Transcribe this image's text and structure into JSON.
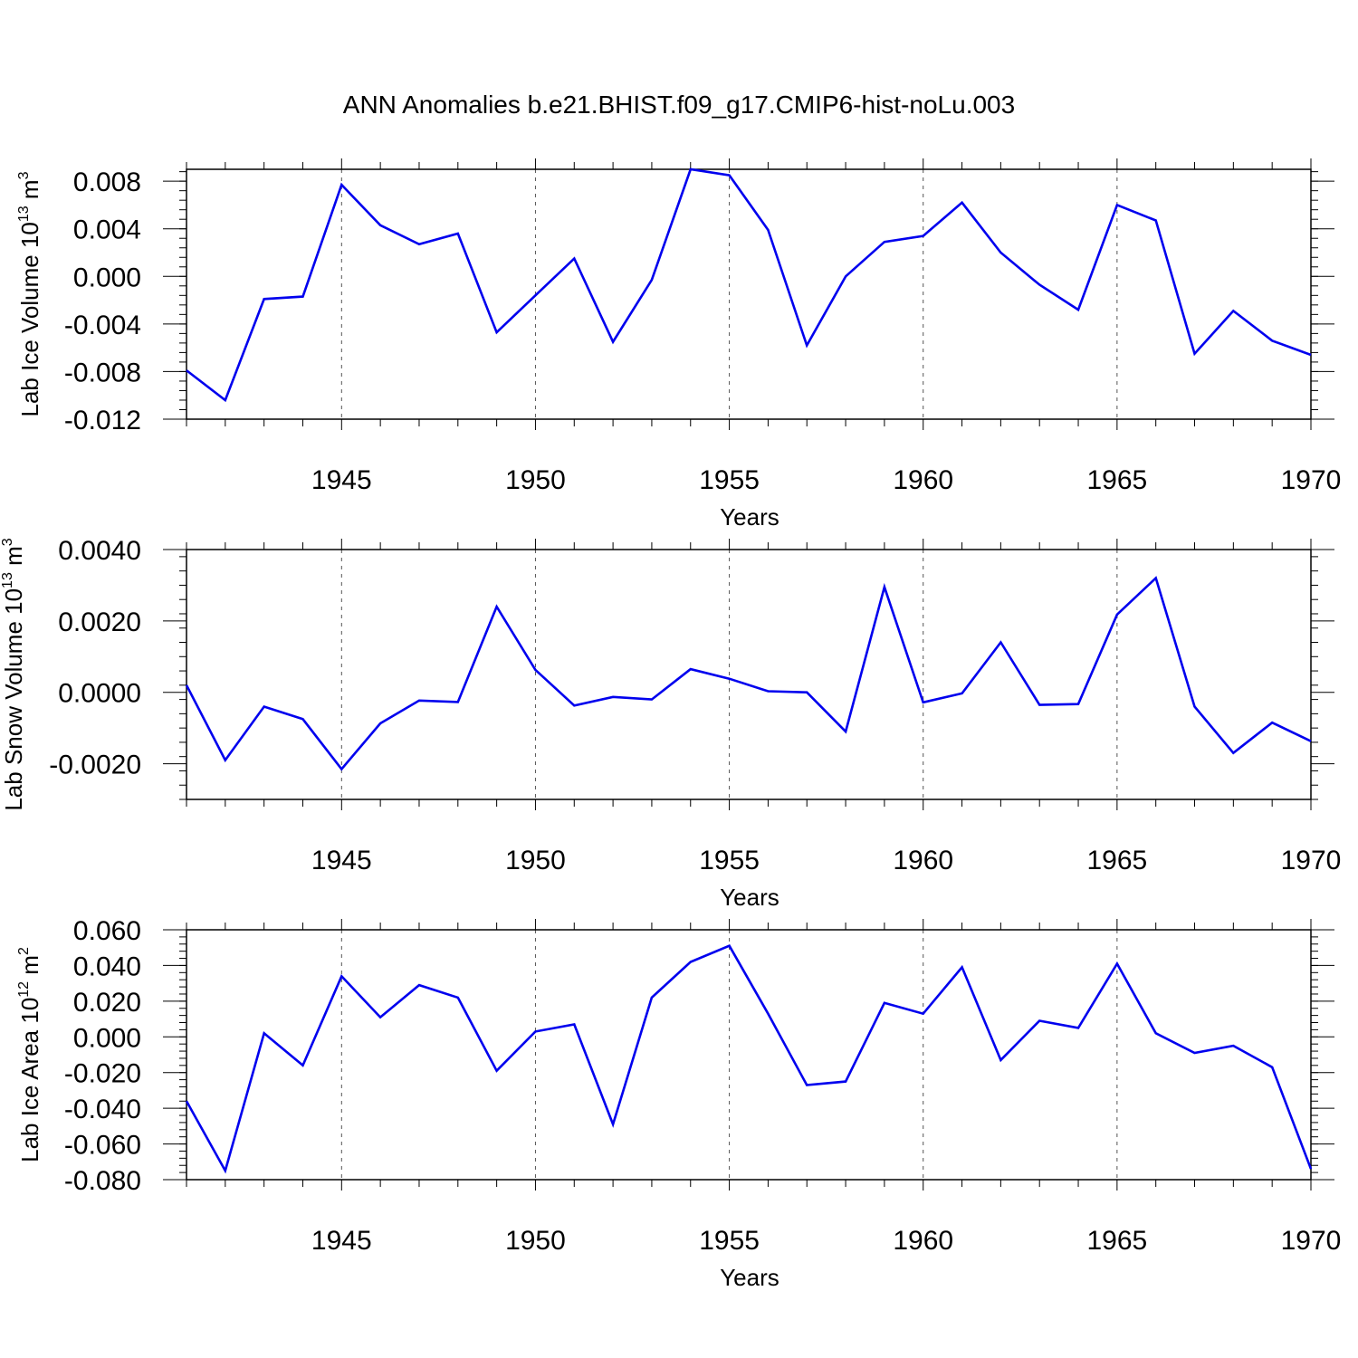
{
  "figure": {
    "title": "ANN Anomalies b.e21.BHIST.f09_g17.CMIP6-hist-noLu.003"
  },
  "chart_data": [
    {
      "type": "line",
      "ylabel": "Lab Ice Volume 10",
      "ylabel_exp": "13",
      "ylabel_unit": " m",
      "ylabel_unit_exp": "3",
      "xlabel": "Years",
      "xlim": [
        1941,
        1970
      ],
      "ylim": [
        -0.012,
        0.009
      ],
      "yticks": [
        -0.012,
        -0.008,
        -0.004,
        0.0,
        0.004,
        0.008
      ],
      "ytick_labels": [
        "-0.012",
        "-0.008",
        "-0.004",
        "0.000",
        "0.004",
        "0.008"
      ],
      "yminor_step": 0.0008,
      "xticks": [
        1945,
        1950,
        1955,
        1960,
        1965,
        1970
      ],
      "xtick_labels": [
        "1945",
        "1950",
        "1955",
        "1960",
        "1965",
        "1970"
      ],
      "x": [
        1941,
        1942,
        1943,
        1944,
        1945,
        1946,
        1947,
        1948,
        1949,
        1950,
        1951,
        1952,
        1953,
        1954,
        1955,
        1956,
        1957,
        1958,
        1959,
        1960,
        1961,
        1962,
        1963,
        1964,
        1965,
        1966,
        1967,
        1968,
        1969,
        1970
      ],
      "series": [
        {
          "name": "Lab Ice Volume",
          "color": "#0000ee",
          "values": [
            -0.0079,
            -0.0104,
            -0.0019,
            -0.0017,
            0.0077,
            0.0043,
            0.0027,
            0.0036,
            -0.0047,
            -0.0016,
            0.0015,
            -0.0055,
            -0.0003,
            0.009,
            0.0085,
            0.0039,
            -0.0058,
            0.0,
            0.0029,
            0.0034,
            0.0062,
            0.002,
            -0.0007,
            -0.0028,
            0.006,
            0.0047,
            -0.0065,
            -0.0029,
            -0.0054,
            -0.0066
          ]
        }
      ]
    },
    {
      "type": "line",
      "ylabel": "Lab Snow Volume 10",
      "ylabel_exp": "13",
      "ylabel_unit": " m",
      "ylabel_unit_exp": "3",
      "xlabel": "Years",
      "xlim": [
        1941,
        1970
      ],
      "ylim": [
        -0.003,
        0.004
      ],
      "yticks": [
        -0.002,
        0.0,
        0.002,
        0.004
      ],
      "ytick_labels": [
        "-0.0020",
        "0.0000",
        "0.0020",
        "0.0040"
      ],
      "yminor_step": 0.0004,
      "xticks": [
        1945,
        1950,
        1955,
        1960,
        1965,
        1970
      ],
      "xtick_labels": [
        "1945",
        "1950",
        "1955",
        "1960",
        "1965",
        "1970"
      ],
      "x": [
        1941,
        1942,
        1943,
        1944,
        1945,
        1946,
        1947,
        1948,
        1949,
        1950,
        1951,
        1952,
        1953,
        1954,
        1955,
        1956,
        1957,
        1958,
        1959,
        1960,
        1961,
        1962,
        1963,
        1964,
        1965,
        1966,
        1967,
        1968,
        1969,
        1970
      ],
      "series": [
        {
          "name": "Lab Snow Volume",
          "color": "#0000ee",
          "values": [
            0.0002,
            -0.0019,
            -0.0004,
            -0.00075,
            -0.00215,
            -0.00087,
            -0.00023,
            -0.00027,
            0.0024,
            0.00063,
            -0.00037,
            -0.00013,
            -0.0002,
            0.00065,
            0.00038,
            3e-05,
            0.0,
            -0.0011,
            0.00295,
            -0.00028,
            -3e-05,
            0.0014,
            -0.00035,
            -0.00033,
            0.00218,
            0.0032,
            -0.0004,
            -0.0017,
            -0.00085,
            -0.00137
          ]
        }
      ]
    },
    {
      "type": "line",
      "ylabel": "Lab Ice Area 10",
      "ylabel_exp": "12",
      "ylabel_unit": " m",
      "ylabel_unit_exp": "2",
      "xlabel": "Years",
      "xlim": [
        1941,
        1970
      ],
      "ylim": [
        -0.08,
        0.06
      ],
      "yticks": [
        -0.08,
        -0.06,
        -0.04,
        -0.02,
        0.0,
        0.02,
        0.04,
        0.06
      ],
      "ytick_labels": [
        "-0.080",
        "-0.060",
        "-0.040",
        "-0.020",
        "0.000",
        "0.020",
        "0.040",
        "0.060"
      ],
      "yminor_step": 0.004,
      "xticks": [
        1945,
        1950,
        1955,
        1960,
        1965,
        1970
      ],
      "xtick_labels": [
        "1945",
        "1950",
        "1955",
        "1960",
        "1965",
        "1970"
      ],
      "x": [
        1941,
        1942,
        1943,
        1944,
        1945,
        1946,
        1947,
        1948,
        1949,
        1950,
        1951,
        1952,
        1953,
        1954,
        1955,
        1956,
        1957,
        1958,
        1959,
        1960,
        1961,
        1962,
        1963,
        1964,
        1965,
        1966,
        1967,
        1968,
        1969,
        1970
      ],
      "series": [
        {
          "name": "Lab Ice Area",
          "color": "#0000ee",
          "values": [
            -0.036,
            -0.075,
            0.002,
            -0.016,
            0.034,
            0.011,
            0.029,
            0.022,
            -0.019,
            0.003,
            0.007,
            -0.049,
            0.022,
            0.042,
            0.051,
            0.013,
            -0.027,
            -0.025,
            0.019,
            0.013,
            0.039,
            -0.013,
            0.009,
            0.005,
            0.041,
            0.002,
            -0.009,
            -0.005,
            -0.017,
            -0.074
          ]
        }
      ]
    }
  ]
}
